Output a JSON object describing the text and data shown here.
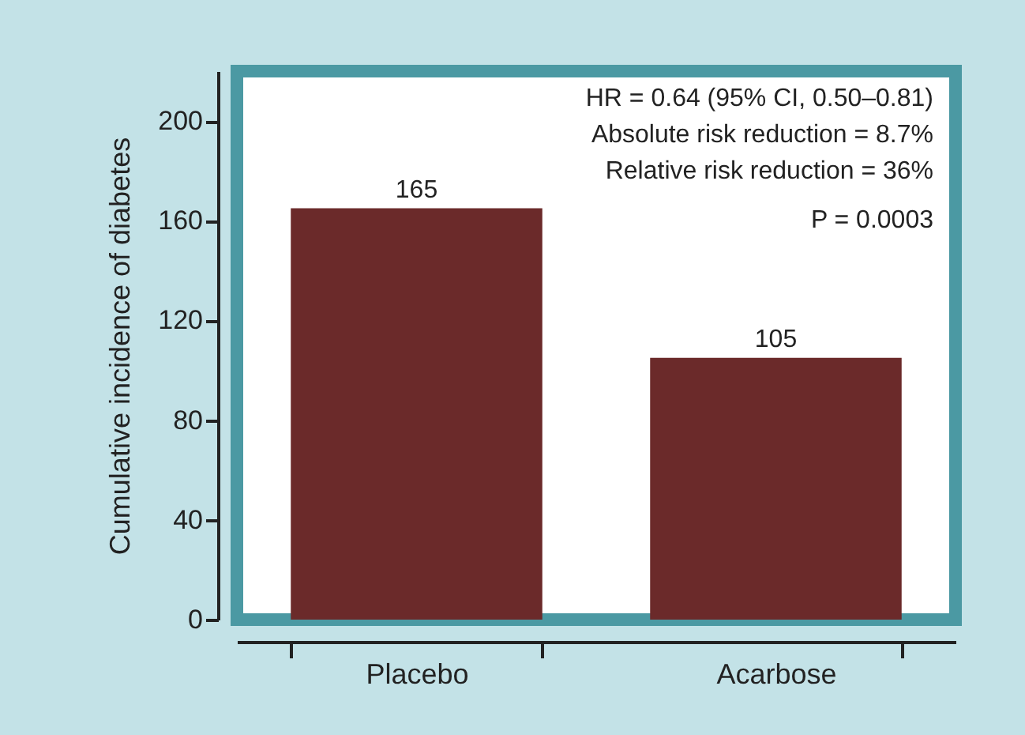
{
  "chart_data": {
    "type": "bar",
    "ylabel": "Cumulative incidence of diabetes",
    "categories": [
      "Placebo",
      "Acarbose"
    ],
    "values": [
      165,
      105
    ],
    "color": "#6b2a2a",
    "ylim": [
      0,
      220
    ],
    "yticks": [
      0,
      40,
      80,
      120,
      160,
      200
    ],
    "data_labels": true,
    "annotations": [
      "HR = 0.64 (95% CI, 0.50–0.81)",
      "Absolute risk reduction = 8.7%",
      "Relative risk reduction = 36%",
      "P = 0.0003"
    ]
  }
}
